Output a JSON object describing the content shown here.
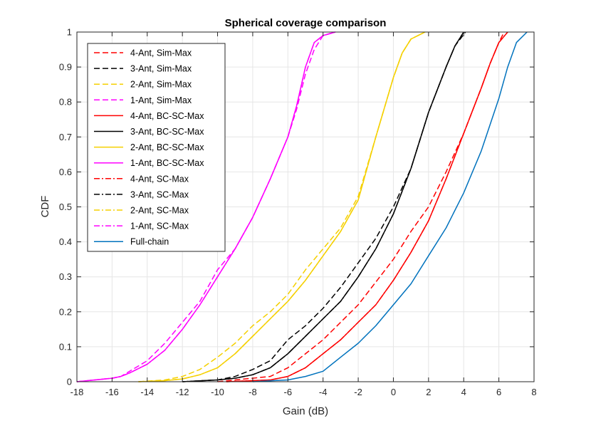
{
  "chart_data": {
    "type": "line",
    "title": "Spherical coverage comparison",
    "xlabel": "Gain (dB)",
    "ylabel": "CDF",
    "xlim": [
      -18,
      8
    ],
    "ylim": [
      0,
      1
    ],
    "xticks": [
      "-18",
      "-16",
      "-14",
      "-12",
      "-10",
      "-8",
      "-6",
      "-4",
      "-2",
      "0",
      "2",
      "4",
      "6",
      "8"
    ],
    "yticks": [
      "0",
      "0.1",
      "0.2",
      "0.3",
      "0.4",
      "0.5",
      "0.6",
      "0.7",
      "0.8",
      "0.9",
      "1"
    ],
    "grid": true,
    "legend_location": "top-left",
    "series": [
      {
        "name": "4-Ant, Sim-Max",
        "color": "#ff0000",
        "style": "dashed",
        "x": [
          -10,
          -7,
          -6,
          -4,
          -2,
          0,
          1,
          2,
          3,
          4,
          5,
          5.5,
          6.0,
          6.3
        ],
        "y": [
          0,
          0.015,
          0.04,
          0.12,
          0.22,
          0.35,
          0.43,
          0.5,
          0.6,
          0.71,
          0.84,
          0.91,
          0.97,
          1
        ]
      },
      {
        "name": "3-Ant, Sim-Max",
        "color": "#000000",
        "style": "dashed",
        "x": [
          -12,
          -10,
          -9,
          -8,
          -7,
          -6,
          -5,
          -4,
          -3,
          -2,
          -1,
          0,
          1,
          2,
          3,
          3.5,
          4.1
        ],
        "y": [
          0,
          0.005,
          0.015,
          0.035,
          0.06,
          0.12,
          0.16,
          0.21,
          0.27,
          0.34,
          0.41,
          0.5,
          0.61,
          0.77,
          0.9,
          0.96,
          1
        ]
      },
      {
        "name": "2-Ant, Sim-Max",
        "color": "#f5d000",
        "style": "dashed",
        "x": [
          -14.5,
          -13,
          -12,
          -11,
          -10,
          -9,
          -8,
          -7,
          -6,
          -5,
          -4,
          -3,
          -2,
          -1,
          0,
          0.5,
          1,
          1.8
        ],
        "y": [
          0,
          0.005,
          0.015,
          0.035,
          0.07,
          0.11,
          0.16,
          0.2,
          0.25,
          0.32,
          0.38,
          0.44,
          0.53,
          0.7,
          0.87,
          0.94,
          0.98,
          1
        ]
      },
      {
        "name": "1-Ant, Sim-Max",
        "color": "#ff00ff",
        "style": "dashed",
        "x": [
          -18,
          -16,
          -15.5,
          -15,
          -14,
          -13,
          -12,
          -11,
          -10,
          -9,
          -8,
          -7,
          -6,
          -5.5,
          -5,
          -4.5,
          -4,
          -3.3
        ],
        "y": [
          0,
          0.01,
          0.015,
          0.03,
          0.06,
          0.11,
          0.17,
          0.23,
          0.32,
          0.38,
          0.47,
          0.58,
          0.7,
          0.78,
          0.88,
          0.95,
          0.99,
          1
        ]
      },
      {
        "name": "4-Ant, BC-SC-Max",
        "color": "#ff0000",
        "style": "solid",
        "x": [
          -9.5,
          -7,
          -6,
          -5,
          -4,
          -3,
          -2,
          -1,
          0,
          1,
          2,
          3,
          4,
          5,
          5.5,
          6.0,
          6.5
        ],
        "y": [
          0,
          0.005,
          0.015,
          0.04,
          0.08,
          0.12,
          0.17,
          0.22,
          0.29,
          0.37,
          0.46,
          0.58,
          0.71,
          0.84,
          0.91,
          0.97,
          1
        ]
      },
      {
        "name": "3-Ant, BC-SC-Max",
        "color": "#000000",
        "style": "solid",
        "x": [
          -12,
          -10,
          -9,
          -8,
          -7,
          -6,
          -5,
          -4,
          -3,
          -2,
          -1,
          0,
          1,
          2,
          3,
          3.5,
          4.0
        ],
        "y": [
          0,
          0.005,
          0.01,
          0.02,
          0.04,
          0.08,
          0.13,
          0.18,
          0.23,
          0.3,
          0.38,
          0.48,
          0.61,
          0.77,
          0.9,
          0.96,
          1
        ]
      },
      {
        "name": "2-Ant, BC-SC-Max",
        "color": "#f5d000",
        "style": "solid",
        "x": [
          -14.5,
          -13,
          -12,
          -11,
          -10,
          -9,
          -8,
          -7,
          -6,
          -5,
          -4,
          -3,
          -2,
          -1,
          0,
          0.5,
          1,
          1.8
        ],
        "y": [
          0,
          0.003,
          0.008,
          0.02,
          0.04,
          0.08,
          0.13,
          0.18,
          0.23,
          0.29,
          0.36,
          0.43,
          0.52,
          0.7,
          0.87,
          0.94,
          0.98,
          1
        ]
      },
      {
        "name": "1-Ant, BC-SC-Max",
        "color": "#ff00ff",
        "style": "solid",
        "x": [
          -18,
          -16,
          -15.5,
          -15,
          -14,
          -13,
          -12,
          -11,
          -10,
          -9,
          -8,
          -7,
          -6,
          -5.5,
          -5,
          -4.5,
          -4,
          -3.3
        ],
        "y": [
          0,
          0.01,
          0.015,
          0.025,
          0.05,
          0.09,
          0.15,
          0.22,
          0.3,
          0.38,
          0.47,
          0.58,
          0.7,
          0.79,
          0.9,
          0.97,
          0.99,
          1
        ]
      },
      {
        "name": "4-Ant, SC-Max",
        "color": "#ff0000",
        "style": "dashdot",
        "x": [
          -9.5,
          -7,
          -6,
          -5,
          -4,
          -3,
          -2,
          -1,
          0,
          1,
          2,
          3,
          4,
          5,
          5.5,
          6.0,
          6.5
        ],
        "y": [
          0,
          0.005,
          0.015,
          0.04,
          0.08,
          0.12,
          0.17,
          0.22,
          0.29,
          0.37,
          0.46,
          0.58,
          0.71,
          0.84,
          0.91,
          0.97,
          1
        ]
      },
      {
        "name": "3-Ant, SC-Max",
        "color": "#000000",
        "style": "dashdot",
        "x": [
          -12,
          -10,
          -9,
          -8,
          -7,
          -6,
          -5,
          -4,
          -3,
          -2,
          -1,
          0,
          1,
          2,
          3,
          3.5,
          4.0
        ],
        "y": [
          0,
          0.005,
          0.01,
          0.02,
          0.04,
          0.08,
          0.13,
          0.18,
          0.23,
          0.3,
          0.38,
          0.48,
          0.61,
          0.77,
          0.9,
          0.96,
          1
        ]
      },
      {
        "name": "2-Ant, SC-Max",
        "color": "#f5d000",
        "style": "dashdot",
        "x": [
          -14.5,
          -13,
          -12,
          -11,
          -10,
          -9,
          -8,
          -7,
          -6,
          -5,
          -4,
          -3,
          -2,
          -1,
          0,
          0.5,
          1,
          1.8
        ],
        "y": [
          0,
          0.003,
          0.008,
          0.02,
          0.04,
          0.08,
          0.13,
          0.18,
          0.23,
          0.29,
          0.36,
          0.43,
          0.52,
          0.7,
          0.87,
          0.94,
          0.98,
          1
        ]
      },
      {
        "name": "1-Ant, SC-Max",
        "color": "#ff00ff",
        "style": "dashdot",
        "x": [
          -18,
          -16,
          -15.5,
          -15,
          -14,
          -13,
          -12,
          -11,
          -10,
          -9,
          -8,
          -7,
          -6,
          -5.5,
          -5,
          -4.5,
          -4,
          -3.3
        ],
        "y": [
          0,
          0.01,
          0.015,
          0.025,
          0.05,
          0.09,
          0.15,
          0.22,
          0.3,
          0.38,
          0.47,
          0.58,
          0.7,
          0.79,
          0.9,
          0.97,
          0.99,
          1
        ]
      },
      {
        "name": "Full-chain",
        "color": "#0072bd",
        "style": "solid",
        "x": [
          -8,
          -6,
          -5,
          -4,
          -3,
          -2,
          -1,
          0,
          1,
          2,
          3,
          4,
          5,
          6,
          6.5,
          7,
          7.6
        ],
        "y": [
          0,
          0.005,
          0.015,
          0.03,
          0.07,
          0.11,
          0.16,
          0.22,
          0.28,
          0.36,
          0.44,
          0.54,
          0.66,
          0.81,
          0.9,
          0.97,
          1
        ]
      }
    ]
  }
}
